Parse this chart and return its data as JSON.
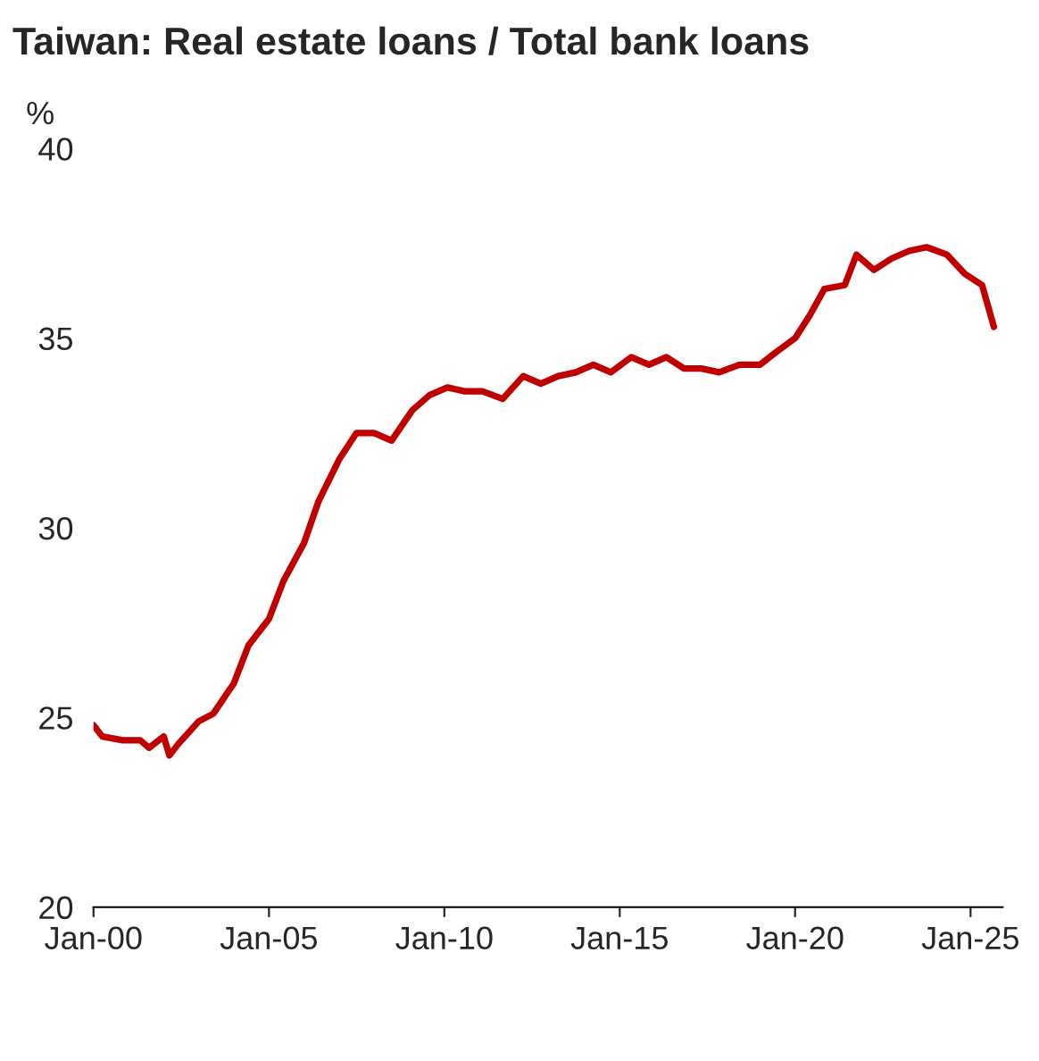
{
  "chart_data": {
    "type": "line",
    "title": "Taiwan: Real estate loans / Total bank loans",
    "ylabel": "%",
    "x": [
      "2000-01",
      "2000-04",
      "2000-11",
      "2001-05",
      "2001-08",
      "2002-01",
      "2002-03",
      "2002-06",
      "2003-01",
      "2003-06",
      "2004-01",
      "2004-06",
      "2005-01",
      "2005-06",
      "2006-01",
      "2006-06",
      "2007-01",
      "2007-07",
      "2008-01",
      "2008-07",
      "2009-02",
      "2009-08",
      "2010-02",
      "2010-08",
      "2011-02",
      "2011-09",
      "2012-04",
      "2012-10",
      "2013-04",
      "2013-10",
      "2014-04",
      "2014-10",
      "2015-05",
      "2015-11",
      "2016-05",
      "2016-11",
      "2017-05",
      "2017-11",
      "2018-06",
      "2019-01",
      "2019-06",
      "2020-01",
      "2020-06",
      "2020-11",
      "2021-06",
      "2021-10",
      "2022-04",
      "2022-10",
      "2023-04",
      "2023-10",
      "2024-05",
      "2024-11",
      "2025-05",
      "2025-09"
    ],
    "series": [
      {
        "color": "#c00000",
        "values": [
          24.8,
          24.5,
          24.4,
          24.4,
          24.2,
          24.5,
          24.0,
          24.3,
          24.9,
          25.1,
          25.9,
          26.9,
          27.6,
          28.6,
          29.6,
          30.7,
          31.8,
          32.5,
          32.5,
          32.3,
          33.1,
          33.5,
          33.7,
          33.6,
          33.6,
          33.4,
          34.0,
          33.8,
          34.0,
          34.1,
          34.3,
          34.1,
          34.5,
          34.3,
          34.5,
          34.2,
          34.2,
          34.1,
          34.3,
          34.3,
          34.6,
          35.0,
          35.6,
          36.3,
          36.4,
          37.2,
          36.8,
          37.1,
          37.3,
          37.4,
          37.2,
          36.7,
          36.4,
          35.3
        ]
      }
    ],
    "xlim": [
      "2000-01",
      "2025-12"
    ],
    "xticks": [
      {
        "value": "2000-01",
        "label": "Jan-00"
      },
      {
        "value": "2005-01",
        "label": "Jan-05"
      },
      {
        "value": "2010-01",
        "label": "Jan-10"
      },
      {
        "value": "2015-01",
        "label": "Jan-15"
      },
      {
        "value": "2020-01",
        "label": "Jan-20"
      },
      {
        "value": "2025-01",
        "label": "Jan-25"
      }
    ],
    "ylim": [
      20,
      40
    ],
    "yticks": [
      20,
      25,
      30,
      35,
      40
    ],
    "grid": false,
    "marker": "none",
    "line_style": "solid"
  }
}
